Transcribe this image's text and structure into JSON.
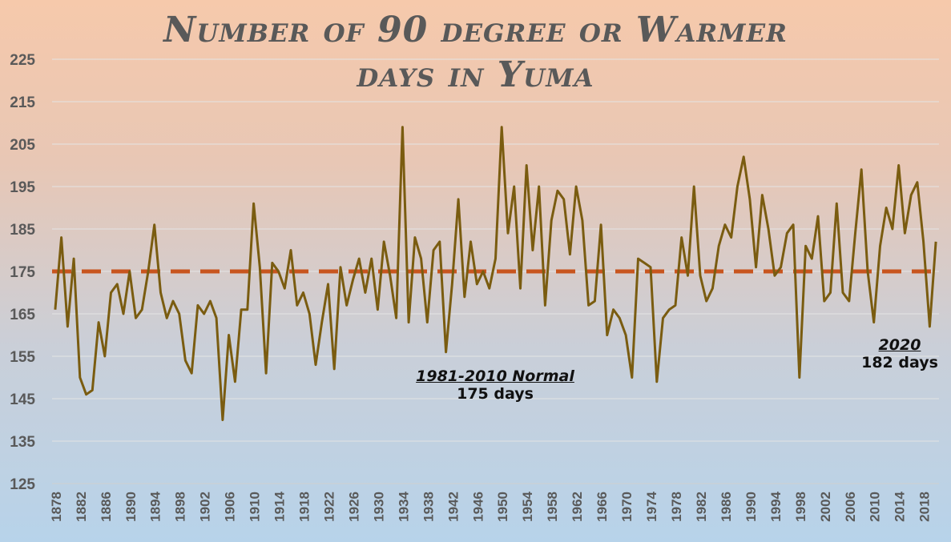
{
  "chart_data": {
    "type": "line",
    "title_line1": "Number of 90 degree or Warmer",
    "title_line2": "days in Yuma",
    "xlabel": "",
    "ylabel": "",
    "ylim": [
      125,
      225
    ],
    "yticks": [
      125,
      135,
      145,
      155,
      165,
      175,
      185,
      195,
      205,
      215,
      225
    ],
    "x_tick_labels": [
      "1878",
      "1882",
      "1886",
      "1890",
      "1894",
      "1898",
      "1902",
      "1906",
      "1910",
      "1914",
      "1918",
      "1922",
      "1926",
      "1930",
      "1934",
      "1938",
      "1942",
      "1946",
      "1950",
      "1954",
      "1958",
      "1962",
      "1966",
      "1970",
      "1974",
      "1978",
      "1982",
      "1986",
      "1990",
      "1994",
      "1998",
      "2002",
      "2006",
      "2010",
      "2014",
      "2018"
    ],
    "grid": true,
    "x_start": 1878,
    "x_end": 2020,
    "series": [
      {
        "name": "",
        "color": "#7a5c10",
        "values": [
          166,
          183,
          162,
          178,
          150,
          146,
          147,
          163,
          155,
          170,
          172,
          165,
          175,
          164,
          166,
          175,
          186,
          170,
          164,
          168,
          165,
          154,
          151,
          167,
          165,
          168,
          164,
          140,
          160,
          149,
          166,
          166,
          191,
          176,
          151,
          177,
          175,
          171,
          180,
          167,
          170,
          165,
          153,
          163,
          172,
          152,
          176,
          167,
          173,
          178,
          170,
          178,
          166,
          182,
          174,
          164,
          209,
          163,
          183,
          178,
          163,
          180,
          182,
          156,
          172,
          192,
          169,
          182,
          172,
          175,
          171,
          178,
          209,
          184,
          195,
          171,
          200,
          180,
          195,
          167,
          187,
          194,
          192,
          179,
          195,
          187,
          167,
          168,
          186,
          160,
          166,
          164,
          160,
          150,
          178,
          177,
          176,
          149,
          164,
          166,
          167,
          183,
          174,
          195,
          174,
          168,
          171,
          181,
          186,
          183,
          195,
          202,
          192,
          176,
          193,
          185,
          174,
          176,
          184,
          186,
          150,
          181,
          178,
          188,
          168,
          170,
          191,
          170,
          168,
          184,
          199,
          175,
          163,
          181,
          190,
          185,
          200,
          184,
          193,
          196,
          182,
          162,
          182
        ]
      }
    ],
    "normal": {
      "value": 175,
      "label": "1981-2010 Normal",
      "value_label": "175 days",
      "color": "#c8551e"
    },
    "annotation": {
      "label": "2020",
      "value_label": "182 days"
    }
  }
}
